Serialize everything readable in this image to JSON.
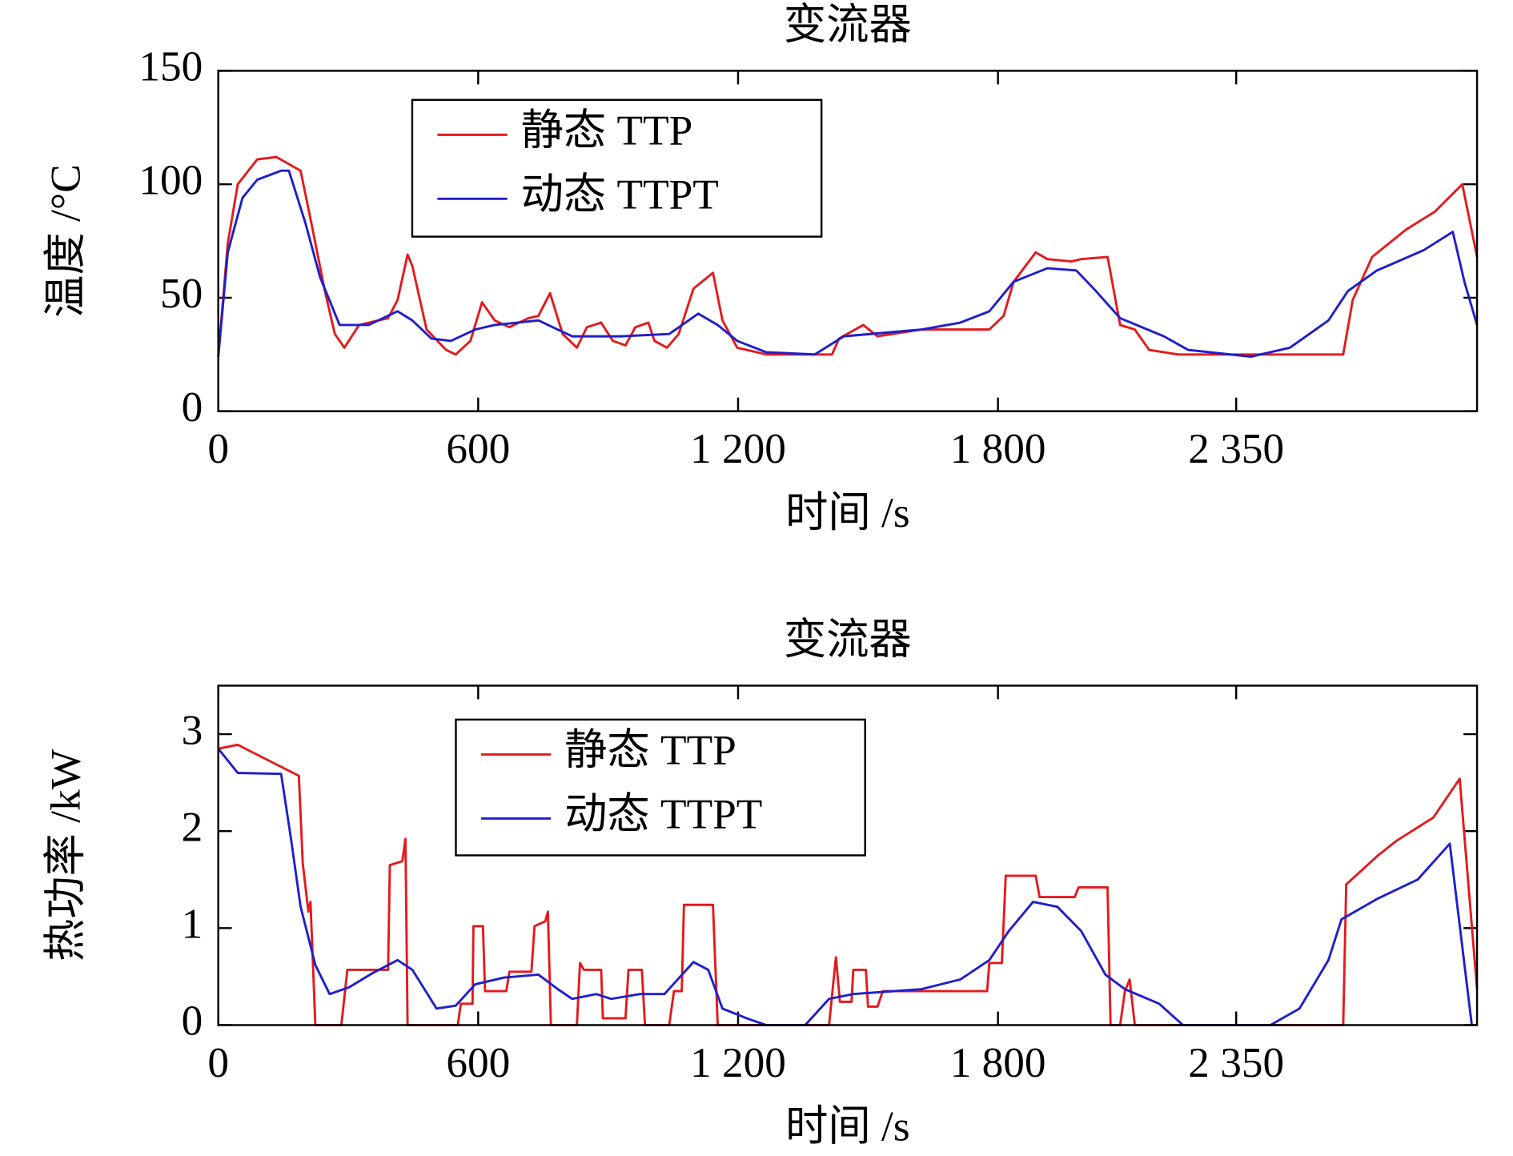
{
  "chart_data": [
    {
      "type": "line",
      "title": "变流器",
      "xlabel": "时间 /s",
      "ylabel": "温度 /°C",
      "xlim": [
        0,
        2906
      ],
      "xticks": [
        0,
        600,
        {
          "value": 1200,
          "label": "1 200"
        },
        {
          "value": 1800,
          "label": "1 800"
        },
        {
          "value": 2350,
          "label": "2 350"
        }
      ],
      "ylim": [
        0,
        150
      ],
      "yticks": [
        0,
        50,
        100,
        150
      ],
      "series": [
        {
          "name": "静态 TTP",
          "color": "#e41a1c",
          "x": [
            0,
            22,
            45,
            90,
            134,
            190,
            217,
            246,
            269,
            291,
            325,
            392,
            414,
            437,
            448,
            481,
            526,
            548,
            582,
            609,
            638,
            672,
            716,
            739,
            766,
            795,
            828,
            851,
            884,
            911,
            940,
            963,
            993,
            1007,
            1036,
            1063,
            1097,
            1142,
            1164,
            1198,
            1265,
            1417,
            1433,
            1489,
            1522,
            1623,
            1780,
            1813,
            1836,
            1887,
            1914,
            1970,
            1992,
            2053,
            2082,
            2116,
            2149,
            2216,
            2597,
            2619,
            2664,
            2742,
            2809,
            2872,
            2906
          ],
          "values": [
            24,
            74,
            100,
            111,
            112,
            106,
            81,
            53,
            34,
            28,
            38,
            41,
            49,
            69,
            64,
            36,
            27,
            25,
            31,
            48,
            40,
            37,
            41,
            42,
            52,
            34,
            28,
            37,
            39,
            31,
            29,
            37,
            39,
            31,
            28,
            34,
            54,
            61,
            40,
            28,
            25,
            25,
            32,
            38,
            33,
            36,
            36,
            42,
            57,
            70,
            67,
            66,
            67,
            68,
            38,
            36,
            27,
            25,
            25,
            49,
            68,
            80,
            88,
            100,
            68
          ]
        },
        {
          "name": "动态 TTPT",
          "color": "#1f1fcc",
          "x": [
            0,
            22,
            56,
            90,
            145,
            163,
            201,
            235,
            280,
            347,
            414,
            448,
            492,
            537,
            593,
            638,
            739,
            772,
            817,
            929,
            1041,
            1108,
            1153,
            1198,
            1265,
            1377,
            1444,
            1623,
            1713,
            1780,
            1836,
            1914,
            1981,
            2026,
            2082,
            2183,
            2239,
            2384,
            2474,
            2563,
            2608,
            2675,
            2783,
            2850,
            2877,
            2906
          ],
          "values": [
            24,
            70,
            94,
            102,
            106,
            106,
            83,
            59,
            38,
            38,
            44,
            40,
            32,
            31,
            36,
            38,
            40,
            37,
            33,
            33,
            34,
            43,
            38,
            31,
            26,
            25,
            33,
            36,
            39,
            44,
            57,
            63,
            62,
            53,
            41,
            33,
            27,
            24,
            28,
            40,
            53,
            62,
            71,
            79,
            57,
            38
          ]
        }
      ]
    },
    {
      "type": "line",
      "title": "变流器",
      "xlabel": "时间 /s",
      "ylabel": "热功率 /kW",
      "xlim": [
        0,
        2906
      ],
      "xticks": [
        0,
        600,
        {
          "value": 1200,
          "label": "1 200"
        },
        {
          "value": 1800,
          "label": "1 800"
        },
        {
          "value": 2350,
          "label": "2 350"
        }
      ],
      "ylim": [
        0,
        3.5
      ],
      "yticks": [
        0,
        1,
        2,
        3
      ],
      "series": [
        {
          "name": "静态 TTP",
          "color": "#e41a1c",
          "x": [
            0,
            45,
            186,
            195,
            208,
            213,
            224,
            284,
            298,
            392,
            396,
            425,
            432,
            437,
            553,
            560,
            587,
            589,
            611,
            616,
            665,
            672,
            723,
            730,
            755,
            761,
            768,
            828,
            835,
            844,
            884,
            888,
            940,
            947,
            978,
            985,
            1041,
            1052,
            1070,
            1075,
            1142,
            1153,
            1410,
            1426,
            1435,
            1462,
            1466,
            1495,
            1500,
            1522,
            1534,
            1775,
            1780,
            1809,
            1818,
            1887,
            1896,
            1977,
            1986,
            2053,
            2060,
            2082,
            2093,
            2104,
            2116,
            2597,
            2604,
            2675,
            2720,
            2805,
            2866,
            2906
          ],
          "values": [
            2.85,
            2.89,
            2.57,
            1.67,
            1.17,
            1.27,
            0,
            0,
            0.57,
            0.57,
            1.65,
            1.69,
            1.92,
            0,
            0,
            0.22,
            0.22,
            1.02,
            1.02,
            0.35,
            0.35,
            0.55,
            0.55,
            1.02,
            1.07,
            1.17,
            0,
            0,
            0.64,
            0.57,
            0.57,
            0.07,
            0.07,
            0.57,
            0.57,
            0,
            0,
            0.35,
            0.35,
            1.24,
            1.24,
            0,
            0,
            0.7,
            0.24,
            0.24,
            0.57,
            0.57,
            0.19,
            0.19,
            0.35,
            0.35,
            0.64,
            0.64,
            1.54,
            1.54,
            1.32,
            1.32,
            1.42,
            1.42,
            0,
            0,
            0.35,
            0.47,
            0,
            0,
            1.45,
            1.74,
            1.9,
            2.14,
            2.54,
            0.37
          ]
        },
        {
          "name": "动态 TTPT",
          "color": "#1f1fcc",
          "x": [
            0,
            45,
            145,
            168,
            190,
            224,
            257,
            302,
            358,
            414,
            448,
            504,
            548,
            593,
            660,
            739,
            784,
            817,
            873,
            907,
            974,
            1030,
            1097,
            1131,
            1164,
            1220,
            1265,
            1355,
            1410,
            1466,
            1623,
            1713,
            1780,
            1825,
            1881,
            1937,
            1992,
            2048,
            2093,
            2172,
            2227,
            2429,
            2496,
            2563,
            2593,
            2675,
            2769,
            2843,
            2894
          ],
          "values": [
            2.85,
            2.6,
            2.59,
            1.92,
            1.22,
            0.62,
            0.32,
            0.39,
            0.54,
            0.67,
            0.57,
            0.17,
            0.2,
            0.42,
            0.49,
            0.52,
            0.37,
            0.27,
            0.32,
            0.27,
            0.32,
            0.32,
            0.65,
            0.57,
            0.17,
            0.07,
            0,
            0,
            0.27,
            0.32,
            0.37,
            0.47,
            0.67,
            0.97,
            1.27,
            1.22,
            0.97,
            0.52,
            0.37,
            0.22,
            0,
            0,
            0.17,
            0.67,
            1.09,
            1.3,
            1.5,
            1.87,
            0
          ]
        }
      ]
    }
  ]
}
